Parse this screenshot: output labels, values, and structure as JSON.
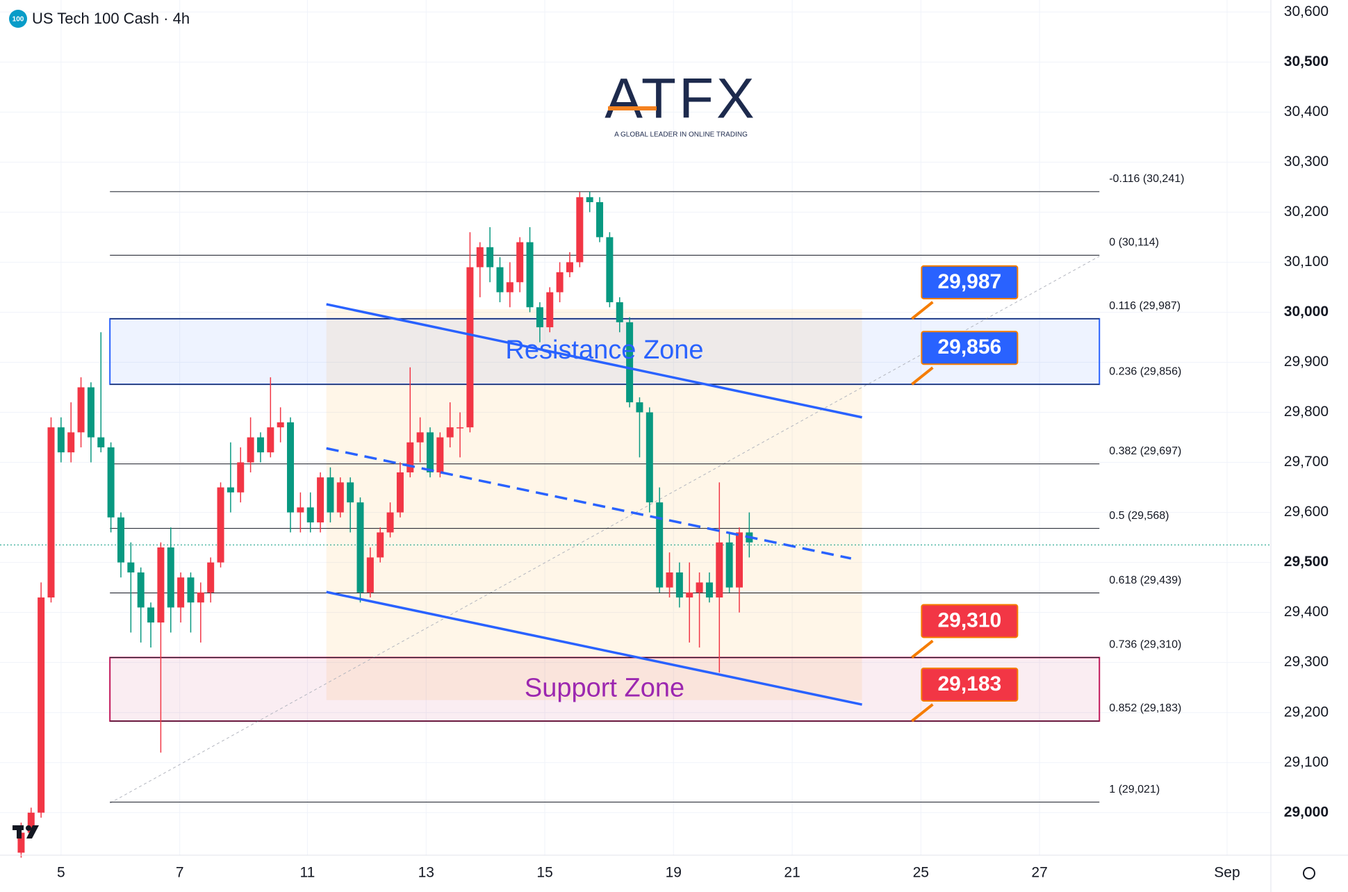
{
  "chart_data": {
    "type": "candlestick",
    "title": "US Tech 100 Cash · 4h",
    "symbol_badge": "100",
    "logo": "ATFX",
    "tagline": "A GLOBAL LEADER IN ONLINE TRADING",
    "up_color": "#f23645",
    "down_color": "#089981",
    "x": [
      -4,
      -3,
      -2,
      -1,
      0,
      1,
      2,
      3,
      4,
      5,
      6,
      7,
      8,
      9,
      10,
      11,
      12,
      13,
      14,
      15,
      16,
      17,
      18,
      19,
      20,
      21,
      22,
      23,
      24,
      25,
      26,
      27,
      28,
      29,
      30,
      31,
      32,
      33,
      34,
      35,
      36,
      37,
      38,
      39,
      40,
      41,
      42,
      43,
      44,
      45,
      46,
      47,
      48,
      49,
      50,
      51,
      52,
      53,
      54,
      55,
      56,
      57,
      58,
      59,
      60,
      61,
      62,
      63,
      64,
      65,
      66,
      67,
      68,
      69
    ],
    "open": [
      28920,
      28960,
      29000,
      29430,
      29770,
      29720,
      29760,
      29850,
      29750,
      29730,
      29590,
      29500,
      29480,
      29410,
      29380,
      29530,
      29410,
      29470,
      29420,
      29440,
      29500,
      29650,
      29640,
      29700,
      29750,
      29720,
      29770,
      29780,
      29600,
      29610,
      29580,
      29670,
      29600,
      29660,
      29620,
      29440,
      29510,
      29560,
      29600,
      29680,
      29740,
      29760,
      29680,
      29750,
      29770,
      29770,
      30090,
      30130,
      30090,
      30040,
      30060,
      30140,
      30010,
      29970,
      30040,
      30080,
      30100,
      30230,
      30220,
      30150,
      30020,
      29980,
      29820,
      29800,
      29620,
      29450,
      29480,
      29430,
      29440,
      29460,
      29430,
      29540,
      29450,
      29560
    ],
    "high": [
      28980,
      29010,
      29460,
      29790,
      29790,
      29820,
      29870,
      29860,
      29960,
      29740,
      29600,
      29540,
      29490,
      29420,
      29540,
      29570,
      29480,
      29480,
      29460,
      29510,
      29660,
      29740,
      29730,
      29790,
      29760,
      29870,
      29810,
      29790,
      29640,
      29640,
      29680,
      29690,
      29670,
      29670,
      29630,
      29530,
      29570,
      29620,
      29700,
      29890,
      29790,
      29770,
      29760,
      29820,
      29800,
      30160,
      30140,
      30170,
      30110,
      30100,
      30150,
      30170,
      30020,
      30050,
      30100,
      30120,
      30240,
      30241,
      30230,
      30160,
      30030,
      29990,
      29830,
      29810,
      29650,
      29520,
      29500,
      29500,
      29480,
      29480,
      29660,
      29560,
      29570,
      29600
    ],
    "low": [
      28910,
      28950,
      28990,
      29420,
      29700,
      29700,
      29730,
      29700,
      29720,
      29560,
      29470,
      29360,
      29340,
      29330,
      29120,
      29360,
      29380,
      29360,
      29340,
      29420,
      29490,
      29600,
      29620,
      29680,
      29700,
      29710,
      29740,
      29560,
      29560,
      29560,
      29560,
      29580,
      29590,
      29560,
      29420,
      29430,
      29500,
      29550,
      29590,
      29670,
      29700,
      29670,
      29670,
      29730,
      29710,
      29760,
      30030,
      30060,
      30020,
      30010,
      30040,
      30000,
      29940,
      29960,
      30020,
      30070,
      30090,
      30200,
      30140,
      30010,
      29960,
      29810,
      29710,
      29600,
      29440,
      29430,
      29410,
      29340,
      29330,
      29420,
      29280,
      29440,
      29400,
      29510
    ],
    "close": [
      28960,
      29000,
      29430,
      29770,
      29720,
      29760,
      29850,
      29750,
      29730,
      29590,
      29500,
      29480,
      29410,
      29380,
      29530,
      29410,
      29470,
      29420,
      29440,
      29500,
      29650,
      29640,
      29700,
      29750,
      29720,
      29770,
      29780,
      29600,
      29610,
      29580,
      29670,
      29600,
      29660,
      29620,
      29440,
      29510,
      29560,
      29600,
      29680,
      29740,
      29760,
      29680,
      29750,
      29770,
      29770,
      30090,
      30130,
      30090,
      30040,
      30060,
      30140,
      30010,
      29970,
      30040,
      30080,
      30100,
      30230,
      30220,
      30150,
      30020,
      29980,
      29820,
      29800,
      29620,
      29450,
      29480,
      29430,
      29440,
      29460,
      29430,
      29540,
      29450,
      29560,
      29540
    ],
    "xlim": [
      -6.12,
      121.29
    ],
    "ylim": [
      28915,
      30624
    ],
    "xticks": [
      {
        "value": 0,
        "label": "5"
      },
      {
        "value": 11.9,
        "label": "7"
      },
      {
        "value": 24.7,
        "label": "11"
      },
      {
        "value": 36.6,
        "label": "13"
      },
      {
        "value": 48.5,
        "label": "15"
      },
      {
        "value": 61.4,
        "label": "19"
      },
      {
        "value": 73.3,
        "label": "21"
      },
      {
        "value": 86.2,
        "label": "25"
      },
      {
        "value": 98.1,
        "label": "27"
      },
      {
        "value": 116.9,
        "label": "Sep"
      }
    ],
    "yticks": [
      {
        "value": 29000,
        "label": "29,000"
      },
      {
        "value": 29100,
        "label": "29,100"
      },
      {
        "value": 29200,
        "label": "29,200"
      },
      {
        "value": 29300,
        "label": "29,300"
      },
      {
        "value": 29400,
        "label": "29,400"
      },
      {
        "value": 29500,
        "label": "29,500"
      },
      {
        "value": 29600,
        "label": "29,600"
      },
      {
        "value": 29700,
        "label": "29,700"
      },
      {
        "value": 29800,
        "label": "29,800"
      },
      {
        "value": 29900,
        "label": "29,900"
      },
      {
        "value": 30000,
        "label": "30,000"
      },
      {
        "value": 30100,
        "label": "30,100"
      },
      {
        "value": 30200,
        "label": "30,200"
      },
      {
        "value": 30300,
        "label": "30,300"
      },
      {
        "value": 30400,
        "label": "30,400"
      },
      {
        "value": 30500,
        "label": "30,500"
      },
      {
        "value": 30600,
        "label": "30,600"
      }
    ],
    "grid": true,
    "fib_x": [
      4.9,
      104.1
    ],
    "fib_levels": [
      {
        "label": "-0.116 (30,241)",
        "price": 30241
      },
      {
        "label": "0 (30,114)",
        "price": 30114
      },
      {
        "label": "0.116 (29,987)",
        "price": 29987
      },
      {
        "label": "0.236 (29,856)",
        "price": 29856
      },
      {
        "label": "0.382 (29,697)",
        "price": 29697
      },
      {
        "label": "0.5 (29,568)",
        "price": 29568
      },
      {
        "label": "0.618 (29,439)",
        "price": 29439
      },
      {
        "label": "0.736 (29,310)",
        "price": 29310
      },
      {
        "label": "0.852 (29,183)",
        "price": 29183
      },
      {
        "label": "1 (29,021)",
        "price": 29021
      }
    ],
    "zones": [
      {
        "label": "Resistance Zone",
        "top": 29987,
        "bottom": 29856,
        "color": "#2962ff"
      },
      {
        "label": "Support Zone",
        "top": 29310,
        "bottom": 29183,
        "color": "#c2185b"
      }
    ],
    "badge_x": 85.3,
    "badges": [
      {
        "value": 29987,
        "label": "29,987",
        "color": "#2962ff"
      },
      {
        "value": 29856,
        "label": "29,856",
        "color": "#2962ff"
      },
      {
        "value": 29310,
        "label": "29,310",
        "color": "#f23645"
      },
      {
        "value": 29183,
        "label": "29,183",
        "color": "#f23645"
      }
    ],
    "range_box": {
      "x": [
        26.6,
        80.3
      ],
      "price": [
        30006,
        29225
      ]
    },
    "trendlines": [
      {
        "x": [
          26.6,
          80.3
        ],
        "price": [
          30016,
          29790
        ],
        "dashed": false
      },
      {
        "x": [
          26.6,
          80.3
        ],
        "price": [
          29441,
          29216
        ],
        "dashed": false
      },
      {
        "x": [
          26.6,
          79.2
        ],
        "price": [
          29728,
          29508
        ],
        "dashed": true
      }
    ],
    "fib_diagonal": {
      "x": [
        4.9,
        104.1
      ],
      "price": [
        29019,
        30112
      ]
    },
    "price_line": 29535
  }
}
